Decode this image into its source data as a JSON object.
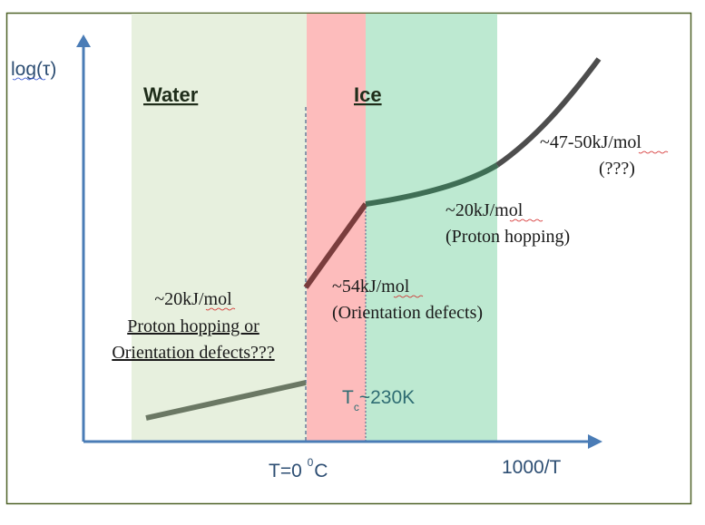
{
  "axes": {
    "y_label": "log(τ)",
    "x_label": "1000/T",
    "x_tick": {
      "prefix": "T=0 ",
      "superscript": "0",
      "unit": "C"
    },
    "tc": {
      "main": "T",
      "sub": "c",
      "value": "~230K"
    }
  },
  "regions": {
    "water": {
      "title": "Water",
      "color": "#e7f0de"
    },
    "ice_fast": {
      "title": "Ice",
      "color": "#fdbcbc"
    },
    "ice_slow": {
      "color": "#bde9d1"
    }
  },
  "annotations": {
    "water": {
      "line1": "~20kJ/mol",
      "line2": "Proton hopping or",
      "line3": "Orientation defects???"
    },
    "ice_orientation": {
      "line1": "~54kJ/mol",
      "line2": "(Orientation defects)"
    },
    "ice_proton": {
      "line1": "~20kJ/mol",
      "line2": "(Proton hopping)"
    },
    "low_temp": {
      "line1": "~47-50kJ/mol",
      "line2": "(???)"
    }
  },
  "colors": {
    "axis": "#4a7cb6",
    "frame": "#4f6228",
    "water_curve": "#6b7864",
    "orient_curve": "#7a3d3d",
    "proton_curve": "#3f6e55",
    "low_temp_curve": "#4d4d4d",
    "label_text": "#1a1a1a",
    "axis_text": "#2d4e73",
    "tc_text": "#2f6d73"
  }
}
